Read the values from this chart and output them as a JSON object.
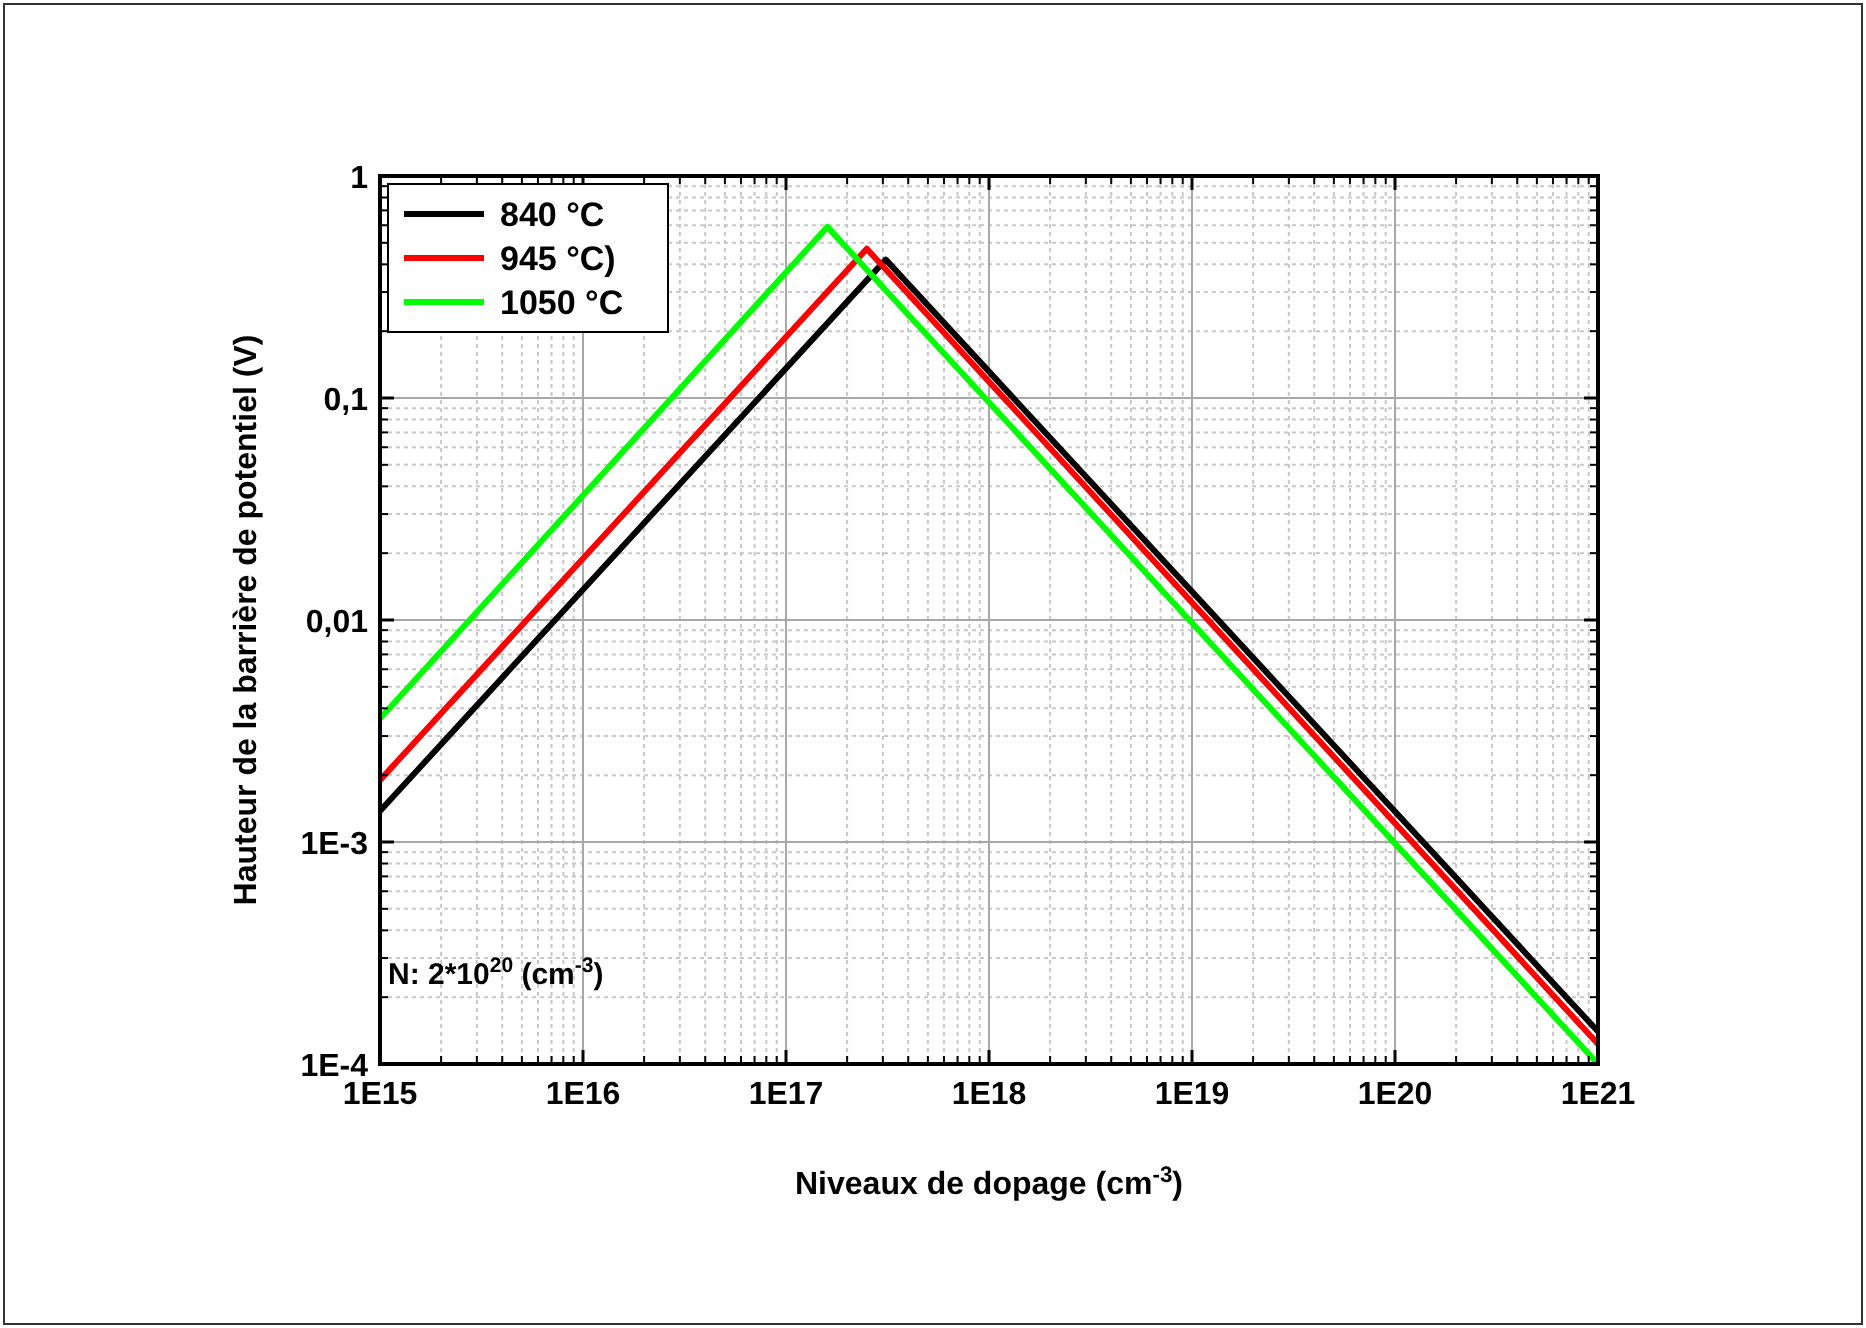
{
  "chart_data": {
    "type": "line",
    "xlabel": "Niveaux de dopage (cm$^{-3}$)",
    "ylabel": "Hauteur de la barrière de potentiel (V)",
    "log": "xy",
    "grid": true,
    "legend": "top left",
    "line_style": "solid",
    "xlim": [
      1000000000000000.0,
      1e+21
    ],
    "xticks": [
      {
        "value": 1000000000000000.0,
        "label": "1E15"
      },
      {
        "value": 1e+16,
        "label": "1E16"
      },
      {
        "value": 1e+17,
        "label": "1E17"
      },
      {
        "value": 1e+18,
        "label": "1E18"
      },
      {
        "value": 1e+19,
        "label": "1E19"
      },
      {
        "value": 1e+20,
        "label": "1E20"
      },
      {
        "value": 1e+21,
        "label": "1E21"
      }
    ],
    "ylim": [
      0.0001,
      1
    ],
    "yticks": [
      {
        "value": 0.0001,
        "label": "1E-4"
      },
      {
        "value": 0.001,
        "label": "1E-3"
      },
      {
        "value": 0.01,
        "label": "0,01"
      },
      {
        "value": 0.1,
        "label": "0,1"
      },
      {
        "value": 1,
        "label": "1"
      }
    ],
    "series": [
      {
        "name": "840 °C",
        "color": "#000000",
        "x": [
          1000000000000000.0,
          3.1e+17,
          1e+21
        ],
        "values": [
          0.00138,
          0.42,
          0.00014
        ]
      },
      {
        "name": "945 °C)",
        "color": "#ff0000",
        "x": [
          1000000000000000.0,
          2.5e+17,
          1e+21
        ],
        "values": [
          0.0019,
          0.47,
          0.000123
        ]
      },
      {
        "name": "1050 °C",
        "color": "#00ff00",
        "x": [
          1000000000000000.0,
          1.6e+17,
          1e+21
        ],
        "values": [
          0.0036,
          0.59,
          0.0001
        ]
      }
    ],
    "annotations": [
      "N: 2*10$^{20}$ (cm$^{-3}$)"
    ]
  }
}
